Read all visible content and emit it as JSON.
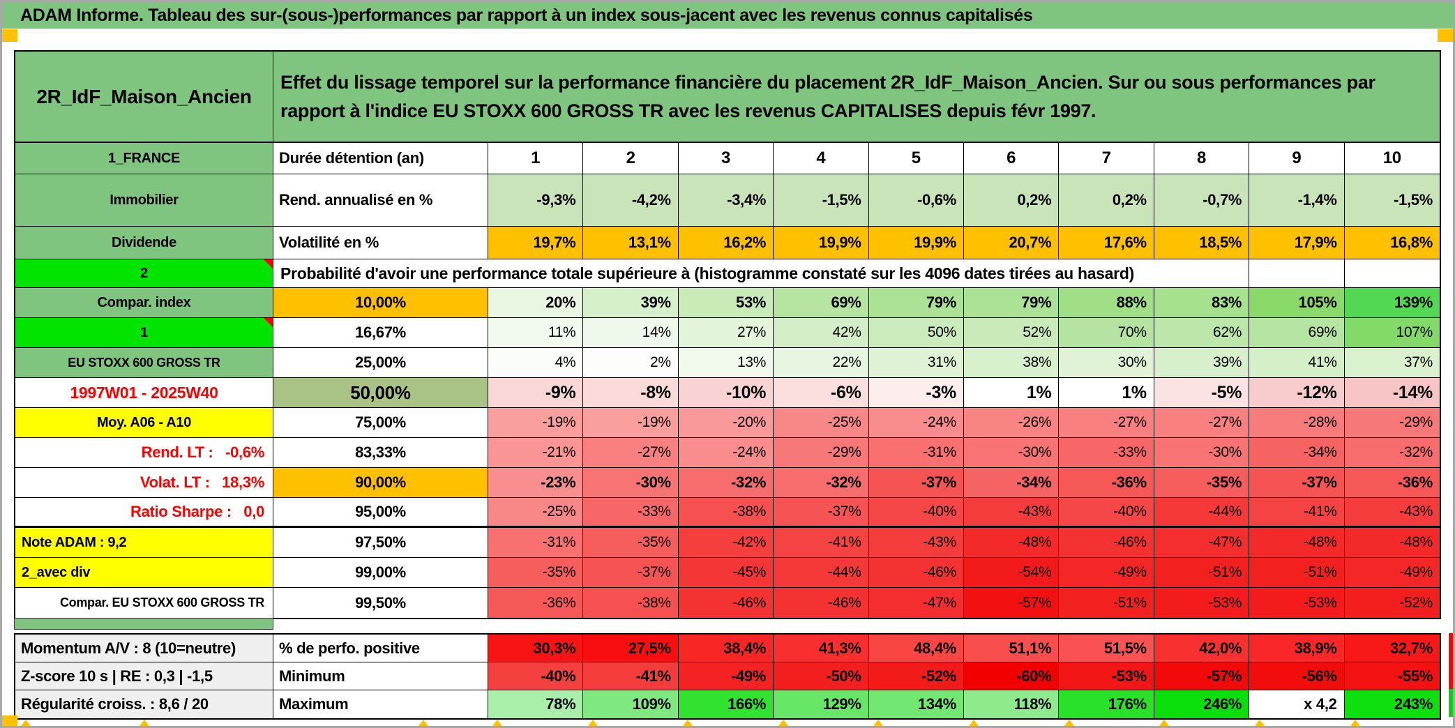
{
  "title_bar": {
    "text": "ADAM Informe. Tableau des sur-(sous-)performances par rapport à un index sous-jacent avec les revenus connus capitalisés"
  },
  "palette": {
    "muted_green": "#80C57F",
    "bright_green": "#00E400",
    "orange": "#FFC000",
    "yellow": "#FFFF00",
    "olive_green": "#A9C387",
    "red_text": "#FF0000",
    "gray_label": "#EFEFEF",
    "light_green_cells": "#C9E4B8",
    "deep_red": "#F20000",
    "deep_green": "#0BDF0B"
  },
  "header": {
    "name": "2R_IdF_Maison_Ancien",
    "description": "Effet du lissage temporel sur la performance financière du placement 2R_IdF_Maison_Ancien. Sur ou sous performances par rapport à l'indice EU STOXX 600 GROSS TR avec les revenus CAPITALISES depuis févr 1997."
  },
  "duration_row": {
    "label": "1_FRANCE",
    "metric": "Durée détention (an)",
    "values": [
      "1",
      "2",
      "3",
      "4",
      "5",
      "6",
      "7",
      "8",
      "9",
      "10"
    ]
  },
  "return_row": {
    "label": "Immobilier",
    "metric": "Rend. annualisé en %",
    "cell_bg": "#C9E4B8",
    "values": [
      "-9,3%",
      "-4,2%",
      "-3,4%",
      "-1,5%",
      "-0,6%",
      "0,2%",
      "0,2%",
      "-0,7%",
      "-1,4%",
      "-1,5%"
    ]
  },
  "volatility_row": {
    "label": "Dividende",
    "metric": "Volatilité en %",
    "cell_bg": "#FFC000",
    "values": [
      "19,7%",
      "13,1%",
      "16,2%",
      "19,9%",
      "19,9%",
      "20,7%",
      "17,6%",
      "18,5%",
      "17,9%",
      "16,8%"
    ]
  },
  "probability_header": {
    "label": "2",
    "text": "Probabilité d'avoir une performance totale supérieure à (histogramme constaté sur les 4096 dates tirées au hasard)"
  },
  "percentile_rows": [
    {
      "label": "Compar. index",
      "style": "green",
      "pct": "10,00%",
      "pct_bg": "#FFC000",
      "bold": true,
      "values": [
        "20%",
        "39%",
        "53%",
        "69%",
        "79%",
        "79%",
        "88%",
        "83%",
        "105%",
        "139%"
      ],
      "colors": [
        "#E8F6E2",
        "#D6F0CA",
        "#C8EBB8",
        "#B6E5A2",
        "#ACE295",
        "#ACE295",
        "#A0DF86",
        "#A6E18D",
        "#8BD96B",
        "#52D852"
      ]
    },
    {
      "label": "1",
      "style": "bright",
      "pct": "16,67%",
      "pct_bg": "#FFFFFF",
      "bold": false,
      "values": [
        "11%",
        "14%",
        "27%",
        "42%",
        "50%",
        "52%",
        "70%",
        "62%",
        "69%",
        "107%"
      ],
      "colors": [
        "#F2FAEF",
        "#EFF9EB",
        "#E2F4D9",
        "#D3EEC6",
        "#CCEBBD",
        "#CAEABA",
        "#B5E3A1",
        "#BDE6AB",
        "#B6E4A2",
        "#83DA69"
      ]
    },
    {
      "label": "EU STOXX 600 GROSS TR",
      "style": "green",
      "pct": "25,00%",
      "pct_bg": "#FFFFFF",
      "bold": false,
      "values": [
        "4%",
        "2%",
        "13%",
        "22%",
        "31%",
        "38%",
        "30%",
        "39%",
        "41%",
        "37%"
      ],
      "colors": [
        "#FBFDFA",
        "#FDFEFC",
        "#F0F9EC",
        "#E7F6E0",
        "#DFF2D5",
        "#D8F0CC",
        "#E0F3D7",
        "#D7F0CB",
        "#D5EFC8",
        "#D9F1CD"
      ]
    },
    {
      "label": "1997W01 - 2025W40",
      "style": "red-center",
      "pct": "50,00%",
      "pct_bg": "#A9C387",
      "bold": true,
      "big": true,
      "values": [
        "-9%",
        "-8%",
        "-10%",
        "-6%",
        "-3%",
        "1%",
        "1%",
        "-5%",
        "-12%",
        "-14%"
      ],
      "colors": [
        "#FAD7D7",
        "#FBDADA",
        "#F9D3D3",
        "#FBDFDF",
        "#FDEDED",
        "#FFFFFF",
        "#FFFFFF",
        "#FCE3E3",
        "#F8CCCC",
        "#F7C5C5"
      ]
    },
    {
      "label": "Moy. A06 - A10",
      "style": "yellow-center",
      "pct": "75,00%",
      "pct_bg": "#FFFFFF",
      "bold": false,
      "values": [
        "-19%",
        "-19%",
        "-20%",
        "-25%",
        "-24%",
        "-26%",
        "-27%",
        "-27%",
        "-28%",
        "-29%"
      ],
      "colors": [
        "#FA9E9E",
        "#FA9E9E",
        "#FA9999",
        "#F88888",
        "#F98C8C",
        "#F88484",
        "#F88080",
        "#F88080",
        "#F87C7C",
        "#F77878"
      ]
    },
    {
      "label": "Rend. LT :   -0,6%",
      "style": "red-right",
      "pct": "83,33%",
      "pct_bg": "#FFFFFF",
      "bold": false,
      "values": [
        "-21%",
        "-27%",
        "-24%",
        "-29%",
        "-31%",
        "-30%",
        "-33%",
        "-30%",
        "-34%",
        "-32%"
      ],
      "colors": [
        "#F99595",
        "#F88080",
        "#F98C8C",
        "#F77878",
        "#F87070",
        "#F87474",
        "#F76767",
        "#F87474",
        "#F66363",
        "#F76C6C"
      ]
    },
    {
      "label": "Volat. LT :   18,3%",
      "style": "red-right",
      "pct": "90,00%",
      "pct_bg": "#FFC000",
      "bold": true,
      "values": [
        "-23%",
        "-30%",
        "-32%",
        "-32%",
        "-37%",
        "-34%",
        "-36%",
        "-35%",
        "-37%",
        "-36%"
      ],
      "colors": [
        "#F98E8E",
        "#F87474",
        "#F76C6C",
        "#F76C6C",
        "#F65454",
        "#F66363",
        "#F65858",
        "#F65E5E",
        "#F65454",
        "#F65858"
      ]
    },
    {
      "label": "Ratio Sharpe :   0,0",
      "style": "red-right",
      "pct": "95,00%",
      "pct_bg": "#FFFFFF",
      "bold": false,
      "thick_bottom": true,
      "values": [
        "-25%",
        "-33%",
        "-38%",
        "-37%",
        "-40%",
        "-43%",
        "-40%",
        "-44%",
        "-41%",
        "-43%"
      ],
      "colors": [
        "#F88888",
        "#F76767",
        "#F65050",
        "#F65454",
        "#F54747",
        "#F53C3C",
        "#F54747",
        "#F53838",
        "#F54242",
        "#F53C3C"
      ]
    },
    {
      "label": "Note ADAM : 9,2",
      "style": "yellow-left",
      "pct": "97,50%",
      "pct_bg": "#FFFFFF",
      "bold": false,
      "values": [
        "-31%",
        "-35%",
        "-42%",
        "-41%",
        "-43%",
        "-48%",
        "-46%",
        "-47%",
        "-48%",
        "-48%"
      ],
      "colors": [
        "#F87070",
        "#F65E5E",
        "#F53E3E",
        "#F54242",
        "#F53C3C",
        "#F42A2A",
        "#F43232",
        "#F42E2E",
        "#F42A2A",
        "#F42A2A"
      ]
    },
    {
      "label": "2_avec div",
      "style": "yellow-left",
      "pct": "99,00%",
      "pct_bg": "#FFFFFF",
      "bold": false,
      "values": [
        "-35%",
        "-37%",
        "-45%",
        "-44%",
        "-46%",
        "-54%",
        "-49%",
        "-51%",
        "-51%",
        "-49%"
      ],
      "colors": [
        "#F65E5E",
        "#F65454",
        "#F43636",
        "#F53838",
        "#F43232",
        "#F21A1A",
        "#F42626",
        "#F32020",
        "#F32020",
        "#F42626"
      ]
    },
    {
      "label": "Compar. EU STOXX 600 GROSS TR",
      "style": "white-right",
      "pct": "99,50%",
      "pct_bg": "#FFFFFF",
      "bold": false,
      "values": [
        "-36%",
        "-38%",
        "-46%",
        "-46%",
        "-47%",
        "-57%",
        "-51%",
        "-53%",
        "-53%",
        "-52%"
      ],
      "colors": [
        "#F65858",
        "#F65050",
        "#F43232",
        "#F43232",
        "#F42E2E",
        "#F21010",
        "#F32020",
        "#F31B1B",
        "#F31B1B",
        "#F31E1E"
      ]
    }
  ],
  "bottom_rows": [
    {
      "label": "Momentum A/V : 8 (10=neutre)",
      "metric": "% de perfo. positive",
      "values": [
        "30,3%",
        "27,5%",
        "38,4%",
        "41,3%",
        "48,4%",
        "51,1%",
        "51,5%",
        "42,0%",
        "38,9%",
        "32,7%"
      ],
      "colors": [
        "#F81414",
        "#F80E0E",
        "#F92626",
        "#F92E2E",
        "#FA4545",
        "#FA4E4E",
        "#FA5252",
        "#F93030",
        "#F92727",
        "#F81818"
      ]
    },
    {
      "label": "Z-score 10 s | RE : 0,3 | -1,5",
      "metric": "Minimum",
      "values": [
        "-40%",
        "-41%",
        "-49%",
        "-50%",
        "-52%",
        "-60%",
        "-53%",
        "-57%",
        "-56%",
        "-55%"
      ],
      "colors": [
        "#F54040",
        "#F53C3C",
        "#F42222",
        "#F31E1E",
        "#F31A1A",
        "#F20000",
        "#F31616",
        "#F20A0A",
        "#F20D0D",
        "#F31111"
      ]
    },
    {
      "label": "Régularité croiss. : 8,6 / 20",
      "metric": "Maximum",
      "values": [
        "78%",
        "109%",
        "166%",
        "129%",
        "134%",
        "118%",
        "176%",
        "246%",
        "x 4,2",
        "243%"
      ],
      "colors": [
        "#A9EFA9",
        "#7FE87F",
        "#31E231",
        "#68E668",
        "#72E872",
        "#8DEB8D",
        "#28E128",
        "#0BDF0B",
        "#FFFFFF",
        "#0EDF0E"
      ]
    }
  ]
}
